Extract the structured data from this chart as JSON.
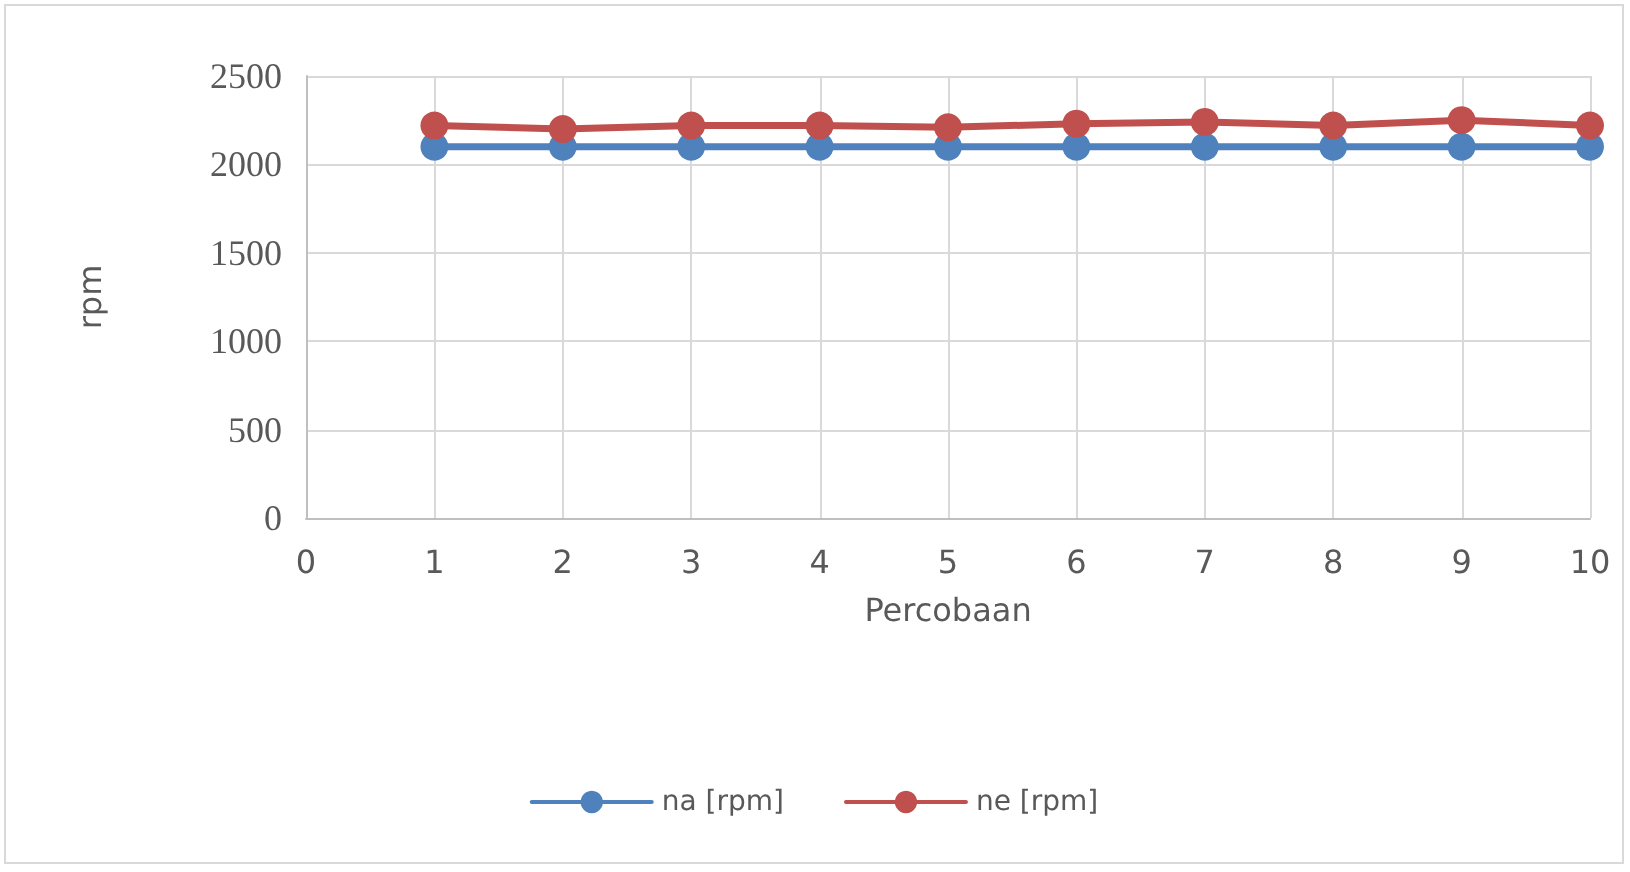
{
  "chart_data": {
    "type": "line",
    "xlabel": "Percobaan",
    "ylabel": "rpm",
    "x": [
      1,
      2,
      3,
      4,
      5,
      6,
      7,
      8,
      9,
      10
    ],
    "series": [
      {
        "name": "na [rpm]",
        "color": "#4f81bd",
        "values": [
          2100,
          2100,
          2100,
          2100,
          2100,
          2100,
          2100,
          2100,
          2100,
          2100
        ]
      },
      {
        "name": "ne [rpm]",
        "color": "#c0504d",
        "values": [
          2220,
          2200,
          2220,
          2220,
          2210,
          2230,
          2240,
          2220,
          2250,
          2220
        ]
      }
    ],
    "xlim": [
      0,
      10
    ],
    "xticks": [
      0,
      1,
      2,
      3,
      4,
      5,
      6,
      7,
      8,
      9,
      10
    ],
    "ylim": [
      0,
      2500
    ],
    "yticks": [
      0,
      500,
      1000,
      1500,
      2000,
      2500
    ],
    "grid": true,
    "legend": "bottom",
    "marker": "circle",
    "line_style": "solid"
  }
}
